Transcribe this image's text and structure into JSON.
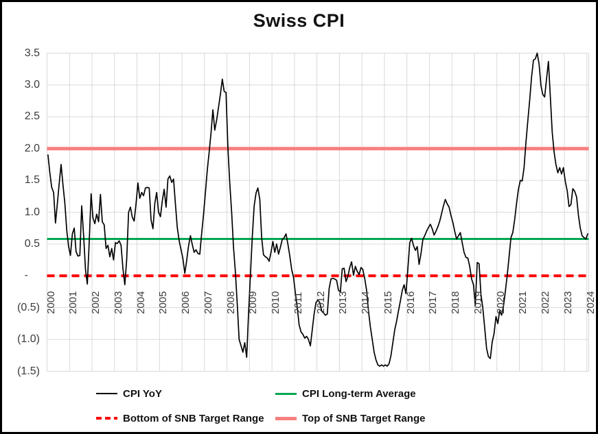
{
  "title": "Swiss CPI",
  "colors": {
    "cpi_line": "#000000",
    "average_line": "#00A651",
    "bottom_target_line": "#FF0000",
    "top_target_line": "#F87F7F",
    "gridline": "#D9D9D9",
    "tick_label": "#3B3B3B",
    "figure_border": "#000000"
  },
  "y_axis": {
    "tick_labels": [
      "3.5",
      "3.0",
      "2.5",
      "2.0",
      "1.5",
      "1.0",
      "0.5",
      "-",
      "(0.5)",
      "(1.0)",
      "(1.5)"
    ],
    "tick_values": [
      3.5,
      3.0,
      2.5,
      2.0,
      1.5,
      1.0,
      0.5,
      0,
      -0.5,
      -1.0,
      -1.5
    ],
    "min": -1.5,
    "max": 3.5
  },
  "x_axis": {
    "years": [
      "2000",
      "2001",
      "2002",
      "2003",
      "2004",
      "2005",
      "2006",
      "2007",
      "2008",
      "2009",
      "2010",
      "2011",
      "2012",
      "2013",
      "2014",
      "2015",
      "2016",
      "2017",
      "2018",
      "2019",
      "2020",
      "2021",
      "2022",
      "2023",
      "2024"
    ]
  },
  "legend": {
    "items": [
      {
        "label": "CPI YoY",
        "style": "solid-thin",
        "color": "#000000"
      },
      {
        "label": "CPI Long-term Average",
        "style": "solid",
        "color": "#00A651"
      },
      {
        "label": "Bottom of SNB Target Range",
        "style": "dashed",
        "color": "#FF0000"
      },
      {
        "label": "Top of SNB Target Range",
        "style": "solid-thick",
        "color": "#F87F7F"
      }
    ]
  },
  "chart_data": {
    "type": "line",
    "title": "Swiss CPI",
    "frequency": "monthly",
    "x_start_year": 2000,
    "points_per_year": 12,
    "ylim": [
      -1.5,
      3.5
    ],
    "grid": true,
    "legend_position": "bottom",
    "series": [
      {
        "name": "CPI YoY",
        "color": "#000000",
        "style": "solid",
        "values": [
          1.9,
          1.62,
          1.39,
          1.31,
          0.83,
          1.13,
          1.45,
          1.75,
          1.43,
          1.15,
          0.72,
          0.46,
          0.32,
          0.66,
          0.75,
          0.38,
          0.31,
          0.32,
          1.1,
          0.65,
          0.1,
          -0.13,
          0.52,
          1.29,
          0.91,
          0.82,
          0.97,
          0.85,
          1.28,
          0.85,
          0.8,
          0.43,
          0.48,
          0.3,
          0.43,
          0.25,
          0.52,
          0.51,
          0.55,
          0.48,
          0.11,
          -0.14,
          0.25,
          1.0,
          1.08,
          0.92,
          0.86,
          1.14,
          1.46,
          1.22,
          1.31,
          1.26,
          1.38,
          1.39,
          1.38,
          0.88,
          0.74,
          1.14,
          1.31,
          1.0,
          0.93,
          1.18,
          1.36,
          1.08,
          1.52,
          1.57,
          1.47,
          1.52,
          1.13,
          0.76,
          0.55,
          0.41,
          0.27,
          0.04,
          0.24,
          0.47,
          0.63,
          0.49,
          0.37,
          0.41,
          0.35,
          0.34,
          0.66,
          0.97,
          1.31,
          1.66,
          1.95,
          2.25,
          2.61,
          2.29,
          2.45,
          2.65,
          2.85,
          3.09,
          2.9,
          2.88,
          2.0,
          1.45,
          1.0,
          0.45,
          0.05,
          -0.45,
          -1.0,
          -1.1,
          -1.2,
          -1.05,
          -1.28,
          -0.6,
          0.0,
          0.6,
          1.1,
          1.3,
          1.38,
          1.2,
          0.6,
          0.33,
          0.3,
          0.28,
          0.23,
          0.37,
          0.54,
          0.37,
          0.5,
          0.34,
          0.45,
          0.57,
          0.6,
          0.66,
          0.5,
          0.32,
          0.1,
          -0.02,
          -0.27,
          -0.5,
          -0.77,
          -0.88,
          -0.92,
          -0.98,
          -0.95,
          -1.0,
          -1.1,
          -0.85,
          -0.6,
          -0.42,
          -0.38,
          -0.42,
          -0.55,
          -0.58,
          -0.62,
          -0.6,
          -0.2,
          -0.05,
          -0.04,
          -0.05,
          -0.07,
          -0.23,
          -0.25,
          0.11,
          0.12,
          -0.09,
          -0.01,
          0.13,
          0.22,
          0.01,
          0.15,
          0.07,
          0.02,
          0.13,
          0.1,
          -0.05,
          -0.23,
          -0.55,
          -0.8,
          -1.0,
          -1.2,
          -1.32,
          -1.4,
          -1.42,
          -1.4,
          -1.42,
          -1.4,
          -1.42,
          -1.38,
          -1.25,
          -1.05,
          -0.85,
          -0.71,
          -0.55,
          -0.4,
          -0.23,
          -0.14,
          -0.28,
          0.1,
          0.52,
          0.59,
          0.48,
          0.4,
          0.46,
          0.18,
          0.35,
          0.57,
          0.63,
          0.7,
          0.76,
          0.81,
          0.74,
          0.64,
          0.7,
          0.77,
          0.86,
          0.98,
          1.1,
          1.2,
          1.13,
          1.08,
          0.95,
          0.84,
          0.7,
          0.58,
          0.63,
          0.68,
          0.52,
          0.37,
          0.29,
          0.28,
          0.15,
          -0.05,
          -0.14,
          -0.46,
          0.21,
          0.19,
          -0.29,
          -0.5,
          -0.82,
          -1.14,
          -1.27,
          -1.3,
          -1.04,
          -0.91,
          -0.64,
          -0.75,
          -0.55,
          -0.62,
          -0.48,
          -0.25,
          0.0,
          0.3,
          0.6,
          0.68,
          0.89,
          1.14,
          1.36,
          1.5,
          1.49,
          1.7,
          2.09,
          2.44,
          2.76,
          3.12,
          3.39,
          3.41,
          3.5,
          3.33,
          2.99,
          2.85,
          2.81,
          3.1,
          3.37,
          2.83,
          2.26,
          1.95,
          1.75,
          1.62,
          1.7,
          1.6,
          1.7,
          1.48,
          1.34,
          1.09,
          1.12,
          1.37,
          1.33,
          1.24,
          0.95,
          0.75,
          0.63,
          0.6,
          0.58,
          0.66
        ]
      },
      {
        "name": "CPI Long-term Average",
        "color": "#00A651",
        "style": "solid",
        "constant": 0.58
      },
      {
        "name": "Bottom of SNB Target Range",
        "color": "#FF0000",
        "style": "dashed",
        "constant": 0.0
      },
      {
        "name": "Top of SNB Target Range",
        "color": "#F87F7F",
        "style": "solid",
        "constant": 2.0
      }
    ]
  }
}
